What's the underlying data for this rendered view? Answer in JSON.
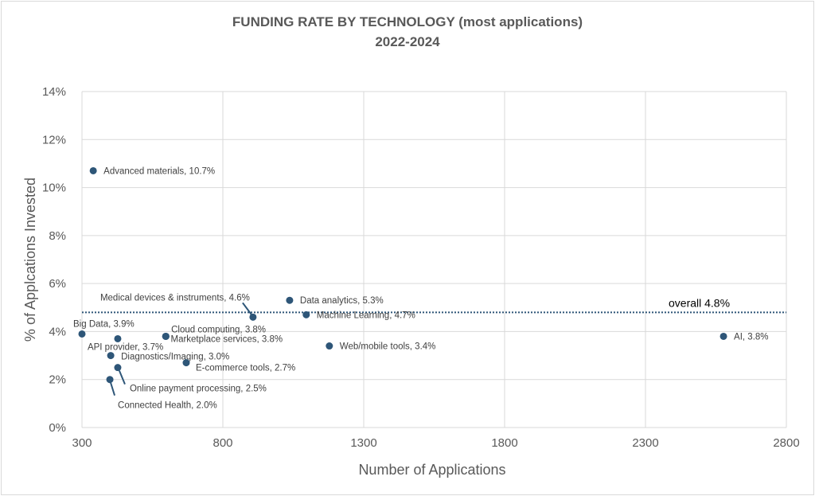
{
  "chart_data": {
    "type": "scatter",
    "title": "FUNDING RATE BY TECHNOLOGY (most applications)",
    "subtitle": "2022-2024",
    "xlabel": "Number of Applications",
    "ylabel": "% of Applcations Invested",
    "xlim": [
      300,
      2800
    ],
    "ylim": [
      0,
      14
    ],
    "xticks": [
      "300",
      "800",
      "1300",
      "1800",
      "2300",
      "2800"
    ],
    "xtick_values": [
      300,
      800,
      1300,
      1800,
      2300,
      2800
    ],
    "yticks": [
      "0%",
      "2%",
      "4%",
      "6%",
      "8%",
      "10%",
      "12%",
      "14%"
    ],
    "ytick_values": [
      0,
      2,
      4,
      6,
      8,
      10,
      12,
      14
    ],
    "grid": true,
    "point_color": "#2e5678",
    "reference_line": {
      "label": "overall 4.8%",
      "y": 4.8,
      "color": "#2e5678"
    },
    "points": [
      {
        "name": "Advanced materials",
        "x": 340,
        "y": 10.7,
        "label": "Advanced materials, 10.7%"
      },
      {
        "name": "Big Data",
        "x": 300,
        "y": 3.9,
        "label": "Big Data, 3.9%"
      },
      {
        "name": "API provider",
        "x": 427,
        "y": 3.7,
        "label": "API provider, 3.7%"
      },
      {
        "name": "Diagnostics/Imaging",
        "x": 402,
        "y": 3.0,
        "label": "Diagnostics/Imaging, 3.0%"
      },
      {
        "name": "Online payment processing",
        "x": 427,
        "y": 2.5,
        "label": "Online payment processing, 2.5%"
      },
      {
        "name": "Connected Health",
        "x": 399,
        "y": 2.0,
        "label": "Connected Health, 2.0%"
      },
      {
        "name": "Cloud computing",
        "x": 597,
        "y": 3.8,
        "label": "Cloud computing, 3.8%"
      },
      {
        "name": "Marketplace services",
        "x": 598,
        "y": 3.8,
        "label": "Marketplace services, 3.8%"
      },
      {
        "name": "E-commerce tools",
        "x": 670,
        "y": 2.7,
        "label": "E-commerce tools, 2.7%"
      },
      {
        "name": "Medical devices & instruments",
        "x": 907,
        "y": 4.6,
        "label": "Medical devices & instruments, 4.6%"
      },
      {
        "name": "Data analytics",
        "x": 1037,
        "y": 5.3,
        "label": "Data analytics, 5.3%"
      },
      {
        "name": "Machine Learning",
        "x": 1096,
        "y": 4.7,
        "label": "Machine Learning, 4.7%"
      },
      {
        "name": "Web/mobile tools",
        "x": 1178,
        "y": 3.4,
        "label": "Web/mobile tools, 3.4%"
      },
      {
        "name": "AI",
        "x": 2577,
        "y": 3.8,
        "label": "AI, 3.8%"
      }
    ]
  }
}
